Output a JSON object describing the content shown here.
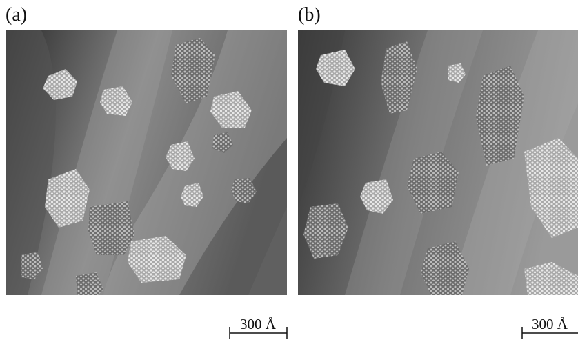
{
  "panels": [
    {
      "label": "(a)",
      "scale_bar": "300 Å"
    },
    {
      "label": "(b)",
      "scale_bar": "300 Å"
    }
  ]
}
